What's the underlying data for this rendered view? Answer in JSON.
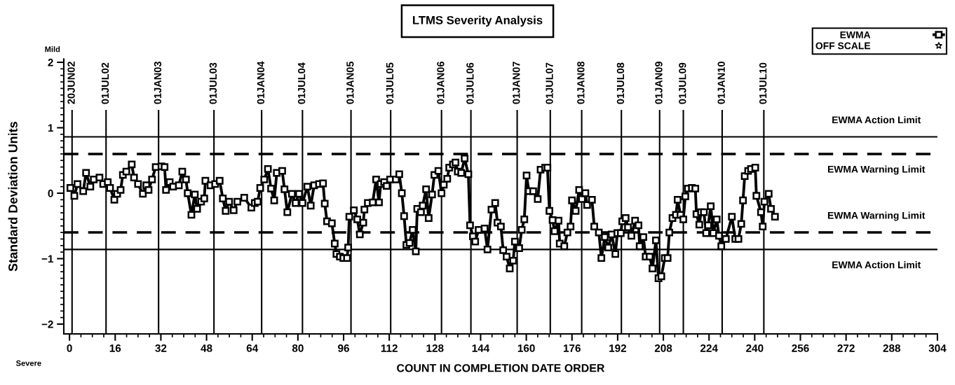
{
  "chart_data": {
    "type": "line",
    "title": "LTMS Severity Analysis",
    "xlabel": "COUNT IN COMPLETION DATE ORDER",
    "ylabel": "Standard Deviation Units",
    "annotations": [
      "Mild",
      "Severe"
    ],
    "xlim": [
      -2,
      304
    ],
    "ylim": [
      -2.15,
      2.05
    ],
    "xticks": [
      0,
      {
        "value": 4,
        "label": null
      },
      {
        "value": 8,
        "label": null
      },
      {
        "value": 12,
        "label": null
      },
      16,
      {
        "value": 20,
        "label": null
      },
      {
        "value": 24,
        "label": null
      },
      {
        "value": 28,
        "label": null
      },
      32,
      {
        "value": 36,
        "label": null
      },
      {
        "value": 40,
        "label": null
      },
      {
        "value": 44,
        "label": null
      },
      48,
      {
        "value": 52,
        "label": null
      },
      {
        "value": 56,
        "label": null
      },
      {
        "value": 60,
        "label": null
      },
      64,
      {
        "value": 68,
        "label": null
      },
      {
        "value": 72,
        "label": null
      },
      {
        "value": 76,
        "label": null
      },
      80,
      {
        "value": 84,
        "label": null
      },
      {
        "value": 88,
        "label": null
      },
      {
        "value": 92,
        "label": null
      },
      96,
      {
        "value": 100,
        "label": null
      },
      {
        "value": 104,
        "label": null
      },
      {
        "value": 108,
        "label": null
      },
      112,
      {
        "value": 116,
        "label": null
      },
      {
        "value": 120,
        "label": null
      },
      {
        "value": 124,
        "label": null
      },
      128,
      {
        "value": 132,
        "label": null
      },
      {
        "value": 136,
        "label": null
      },
      {
        "value": 140,
        "label": null
      },
      144,
      {
        "value": 148,
        "label": null
      },
      {
        "value": 152,
        "label": null
      },
      {
        "value": 156,
        "label": null
      },
      160,
      {
        "value": 164,
        "label": null
      },
      {
        "value": 168,
        "label": null
      },
      {
        "value": 172,
        "label": null
      },
      176,
      {
        "value": 180,
        "label": null
      },
      {
        "value": 184,
        "label": null
      },
      {
        "value": 188,
        "label": null
      },
      192,
      {
        "value": 196,
        "label": null
      },
      {
        "value": 200,
        "label": null
      },
      {
        "value": 204,
        "label": null
      },
      208,
      {
        "value": 212,
        "label": null
      },
      {
        "value": 216,
        "label": null
      },
      {
        "value": 220,
        "label": null
      },
      224,
      {
        "value": 228,
        "label": null
      },
      {
        "value": 232,
        "label": null
      },
      {
        "value": 236,
        "label": null
      },
      240,
      {
        "value": 244,
        "label": null
      },
      {
        "value": 248,
        "label": null
      },
      {
        "value": 252,
        "label": null
      },
      256,
      {
        "value": 260,
        "label": null
      },
      {
        "value": 264,
        "label": null
      },
      {
        "value": 268,
        "label": null
      },
      272,
      {
        "value": 276,
        "label": null
      },
      {
        "value": 280,
        "label": null
      },
      {
        "value": 284,
        "label": null
      },
      288,
      {
        "value": 292,
        "label": null
      },
      {
        "value": 296,
        "label": null
      },
      {
        "value": 300,
        "label": null
      },
      304
    ],
    "yticks": [
      -2,
      {
        "value": -1.9,
        "label": null
      },
      {
        "value": -1.8,
        "label": null
      },
      {
        "value": -1.7,
        "label": null
      },
      {
        "value": -1.6,
        "label": null
      },
      {
        "value": -1.5,
        "label": null
      },
      {
        "value": -1.4,
        "label": null
      },
      {
        "value": -1.3,
        "label": null
      },
      {
        "value": -1.2,
        "label": null
      },
      {
        "value": -1.1,
        "label": null
      },
      -1,
      {
        "value": -0.9,
        "label": null
      },
      {
        "value": -0.8,
        "label": null
      },
      {
        "value": -0.7,
        "label": null
      },
      {
        "value": -0.6,
        "label": null
      },
      {
        "value": -0.5,
        "label": null
      },
      {
        "value": -0.4,
        "label": null
      },
      {
        "value": -0.3,
        "label": null
      },
      {
        "value": -0.2,
        "label": null
      },
      {
        "value": -0.1,
        "label": null
      },
      0,
      {
        "value": 0.1,
        "label": null
      },
      {
        "value": 0.2,
        "label": null
      },
      {
        "value": 0.3,
        "label": null
      },
      {
        "value": 0.4,
        "label": null
      },
      {
        "value": 0.5,
        "label": null
      },
      {
        "value": 0.6,
        "label": null
      },
      {
        "value": 0.7,
        "label": null
      },
      {
        "value": 0.8,
        "label": null
      },
      {
        "value": 0.9,
        "label": null
      },
      1,
      {
        "value": 1.1,
        "label": null
      },
      {
        "value": 1.2,
        "label": null
      },
      {
        "value": 1.3,
        "label": null
      },
      {
        "value": 1.4,
        "label": null
      },
      {
        "value": 1.5,
        "label": null
      },
      {
        "value": 1.6,
        "label": null
      },
      {
        "value": 1.7,
        "label": null
      },
      {
        "value": 1.8,
        "label": null
      },
      {
        "value": 1.9,
        "label": null
      },
      2
    ],
    "grid": false,
    "legend": "top right",
    "marker": "square",
    "line_style": "solid",
    "ref_lines": [
      {
        "axis": "y",
        "value": 0.86,
        "label": "EWMA Action Limit",
        "color": "#000000",
        "line_style": "solid"
      },
      {
        "axis": "y",
        "value": 0.6,
        "label": "EWMA Warning Limit",
        "color": "#000000",
        "line_style": "dashed"
      },
      {
        "axis": "y",
        "value": -0.6,
        "label": "EWMA Warning Limit",
        "color": "#000000",
        "line_style": "dashed"
      },
      {
        "axis": "y",
        "value": -0.86,
        "label": "EWMA Action Limit",
        "color": "#000000",
        "line_style": "solid"
      },
      {
        "axis": "x",
        "value": 0.9,
        "label": "20JUN02",
        "color": "#000000",
        "line_style": "solid"
      },
      {
        "axis": "x",
        "value": 12.8,
        "label": "01JUL02",
        "color": "#000000",
        "line_style": "solid"
      },
      {
        "axis": "x",
        "value": 31.2,
        "label": "01JAN03",
        "color": "#000000",
        "line_style": "solid"
      },
      {
        "axis": "x",
        "value": 50.6,
        "label": "01JUL03",
        "color": "#000000",
        "line_style": "solid"
      },
      {
        "axis": "x",
        "value": 67.3,
        "label": "01JAN04",
        "color": "#000000",
        "line_style": "solid"
      },
      {
        "axis": "x",
        "value": 81.6,
        "label": "01JUL04",
        "color": "#000000",
        "line_style": "solid"
      },
      {
        "axis": "x",
        "value": 98.6,
        "label": "01JAN05",
        "color": "#000000",
        "line_style": "solid"
      },
      {
        "axis": "x",
        "value": 112.5,
        "label": "01JUL05",
        "color": "#000000",
        "line_style": "solid"
      },
      {
        "axis": "x",
        "value": 130.3,
        "label": "01JAN06",
        "color": "#000000",
        "line_style": "solid"
      },
      {
        "axis": "x",
        "value": 140.6,
        "label": "01JUL06",
        "color": "#000000",
        "line_style": "solid"
      },
      {
        "axis": "x",
        "value": 156.8,
        "label": "01JAN07",
        "color": "#000000",
        "line_style": "solid"
      },
      {
        "axis": "x",
        "value": 168.4,
        "label": "01JUL07",
        "color": "#000000",
        "line_style": "solid"
      },
      {
        "axis": "x",
        "value": 179.4,
        "label": "01JAN08",
        "color": "#000000",
        "line_style": "solid"
      },
      {
        "axis": "x",
        "value": 193.3,
        "label": "01JUL08",
        "color": "#000000",
        "line_style": "solid"
      },
      {
        "axis": "x",
        "value": 206.7,
        "label": "01JAN09",
        "color": "#000000",
        "line_style": "solid"
      },
      {
        "axis": "x",
        "value": 215.0,
        "label": "01JUL09",
        "color": "#000000",
        "line_style": "solid"
      },
      {
        "axis": "x",
        "value": 228.6,
        "label": "01JAN10",
        "color": "#000000",
        "line_style": "solid"
      },
      {
        "axis": "x",
        "value": 243.2,
        "label": "01JUL10",
        "color": "#000000",
        "line_style": "solid"
      }
    ],
    "series": [
      {
        "name": "EWMA",
        "color": "#000000",
        "x": [
          0.3,
          1.7,
          2.8,
          4.8,
          5.8,
          7.3,
          8.5,
          10.5,
          11.8,
          13.4,
          14.2,
          15.7,
          16.7,
          17.9,
          18.7,
          19.9,
          21.8,
          22.6,
          24,
          25.7,
          26.9,
          27.7,
          28.9,
          30.2,
          32.2,
          33.3,
          33.8,
          35.1,
          36.3,
          38.3,
          39.5,
          40.8,
          41.4,
          42.7,
          43.9,
          44.7,
          46.1,
          47.2,
          47.6,
          49.4,
          51,
          52.6,
          53.7,
          54.7,
          55.9,
          57.5,
          58.8,
          61.2,
          63.7,
          64.9,
          65.9,
          66.8,
          68.2,
          69.5,
          70.6,
          71.7,
          72.6,
          74.5,
          75.3,
          76.3,
          77.9,
          79.2,
          80.4,
          81.6,
          83.3,
          84.5,
          85.7,
          87.4,
          88.8,
          89.4,
          90.2,
          91.9,
          92.9,
          93.5,
          94.7,
          95.9,
          97.2,
          97.6,
          98,
          99.6,
          100.8,
          101.7,
          102.9,
          103.3,
          104.5,
          106.2,
          107.4,
          108.4,
          109,
          110.2,
          111.1,
          112.3,
          114.3,
          115.5,
          116.4,
          117.2,
          118,
          119.1,
          120.2,
          121.3,
          121.8,
          123.1,
          123.7,
          124.9,
          125.8,
          127,
          127.8,
          129.2,
          130.3,
          131.1,
          132.3,
          133,
          134.3,
          135.2,
          136,
          137.2,
          138.4,
          139.7,
          140.3,
          141.3,
          142.1,
          143.3,
          145.4,
          146.4,
          147.8,
          149.1,
          149.9,
          151.1,
          151.9,
          153.1,
          154.2,
          155.4,
          156,
          157.5,
          158.4,
          159.3,
          160.1,
          160.9,
          162.4,
          164,
          165,
          166.6,
          167.4,
          168.1,
          169.2,
          169.9,
          171.3,
          171.7,
          173.3,
          174.4,
          175.5,
          176,
          177.3,
          178.5,
          179.5,
          180.7,
          181.3,
          183,
          183.8,
          185.4,
          186.3,
          187.5,
          188.7,
          189.9,
          191.2,
          191.9,
          193.1,
          193.6,
          194.8,
          195.6,
          196.8,
          198.1,
          199.3,
          199.7,
          201,
          201.8,
          203.2,
          204.2,
          205.4,
          206.3,
          207.3,
          208.5,
          209.5,
          210.1,
          211.2,
          212.4,
          213,
          214,
          215,
          215.7,
          216.6,
          218,
          219.2,
          219.6,
          220.6,
          221.2,
          222.2,
          223,
          223.7,
          224.6,
          225.5,
          226.7,
          227.5,
          228.3,
          229.9,
          232,
          233.2,
          234.3,
          235.3,
          235.9,
          236.5,
          237.7,
          238.7,
          240.2,
          240.6,
          242.2,
          242.8,
          243.4,
          244.9,
          245.7,
          247.1
        ],
        "values": [
          0.08,
          -0.04,
          0.14,
          0.03,
          0.31,
          0.1,
          0.21,
          0.24,
          0.14,
          0.17,
          0.08,
          -0.1,
          -0.01,
          0.05,
          0.28,
          0.33,
          0.44,
          0.24,
          0.14,
          -0.01,
          0.12,
          0.05,
          0.21,
          0.4,
          0.41,
          0.4,
          0.05,
          0.17,
          0.1,
          0.12,
          0.33,
          0.21,
          0.0,
          -0.33,
          -0.02,
          -0.24,
          -0.13,
          -0.08,
          0.19,
          0.12,
          0.14,
          0.19,
          -0.08,
          -0.27,
          -0.13,
          -0.26,
          -0.13,
          -0.07,
          -0.22,
          -0.15,
          -0.13,
          0.08,
          0.21,
          0.37,
          0.07,
          -0.11,
          0.31,
          0.34,
          0.06,
          -0.29,
          -0.01,
          -0.15,
          -0.01,
          -0.15,
          0.1,
          -0.19,
          0.12,
          0.14,
          0.15,
          -0.16,
          -0.43,
          -0.46,
          -0.77,
          -0.93,
          -0.97,
          -0.99,
          -0.99,
          -0.83,
          -0.36,
          -0.26,
          -0.4,
          -0.63,
          -0.45,
          -0.25,
          -0.15,
          -0.14,
          0.21,
          -0.14,
          0.14,
          0.17,
          0.11,
          0.21,
          0.21,
          0.29,
          0.0,
          -0.35,
          -0.79,
          -0.76,
          -0.56,
          -0.89,
          -0.24,
          -0.29,
          -0.19,
          0.06,
          -0.38,
          -0.02,
          0.28,
          0.34,
          0.0,
          0.13,
          0.22,
          0.39,
          0.44,
          0.47,
          0.33,
          0.31,
          0.53,
          0.29,
          -0.49,
          -0.66,
          -0.74,
          -0.56,
          -0.54,
          -0.86,
          -0.25,
          -0.15,
          -0.45,
          -0.51,
          -0.87,
          -0.97,
          -1.15,
          -1.03,
          -0.74,
          -0.84,
          -0.56,
          -0.4,
          0.27,
          0.03,
          0.03,
          -0.09,
          0.36,
          0.39,
          0.39,
          -0.27,
          -0.41,
          -0.58,
          -0.42,
          -0.77,
          -0.81,
          -0.6,
          -0.51,
          -0.11,
          -0.27,
          0.05,
          -0.09,
          0.0,
          -0.18,
          -0.1,
          -0.51,
          -0.6,
          -0.99,
          -0.67,
          -0.83,
          -0.63,
          -0.93,
          -0.61,
          -0.61,
          -0.43,
          -0.38,
          -0.52,
          -0.65,
          -0.42,
          -0.49,
          -0.81,
          -0.67,
          -0.97,
          -0.97,
          -1.15,
          -0.72,
          -1.3,
          -1.27,
          -0.99,
          -0.99,
          -0.6,
          -0.38,
          -0.33,
          -0.1,
          -0.33,
          -0.4,
          -0.05,
          0.07,
          0.08,
          0.07,
          -0.32,
          -0.48,
          -0.29,
          -0.29,
          -0.61,
          -0.49,
          -0.2,
          -0.61,
          -0.4,
          -0.65,
          -0.81,
          -0.7,
          -0.36,
          -0.7,
          -0.7,
          -0.47,
          -0.11,
          0.26,
          0.34,
          0.37,
          0.39,
          -0.04,
          -0.29,
          -0.51,
          -0.13,
          -0.01,
          -0.24,
          -0.36
        ]
      },
      {
        "name": "OFF SCALE",
        "type": "scatter",
        "marker": "star",
        "color": "#000000"
      }
    ]
  }
}
